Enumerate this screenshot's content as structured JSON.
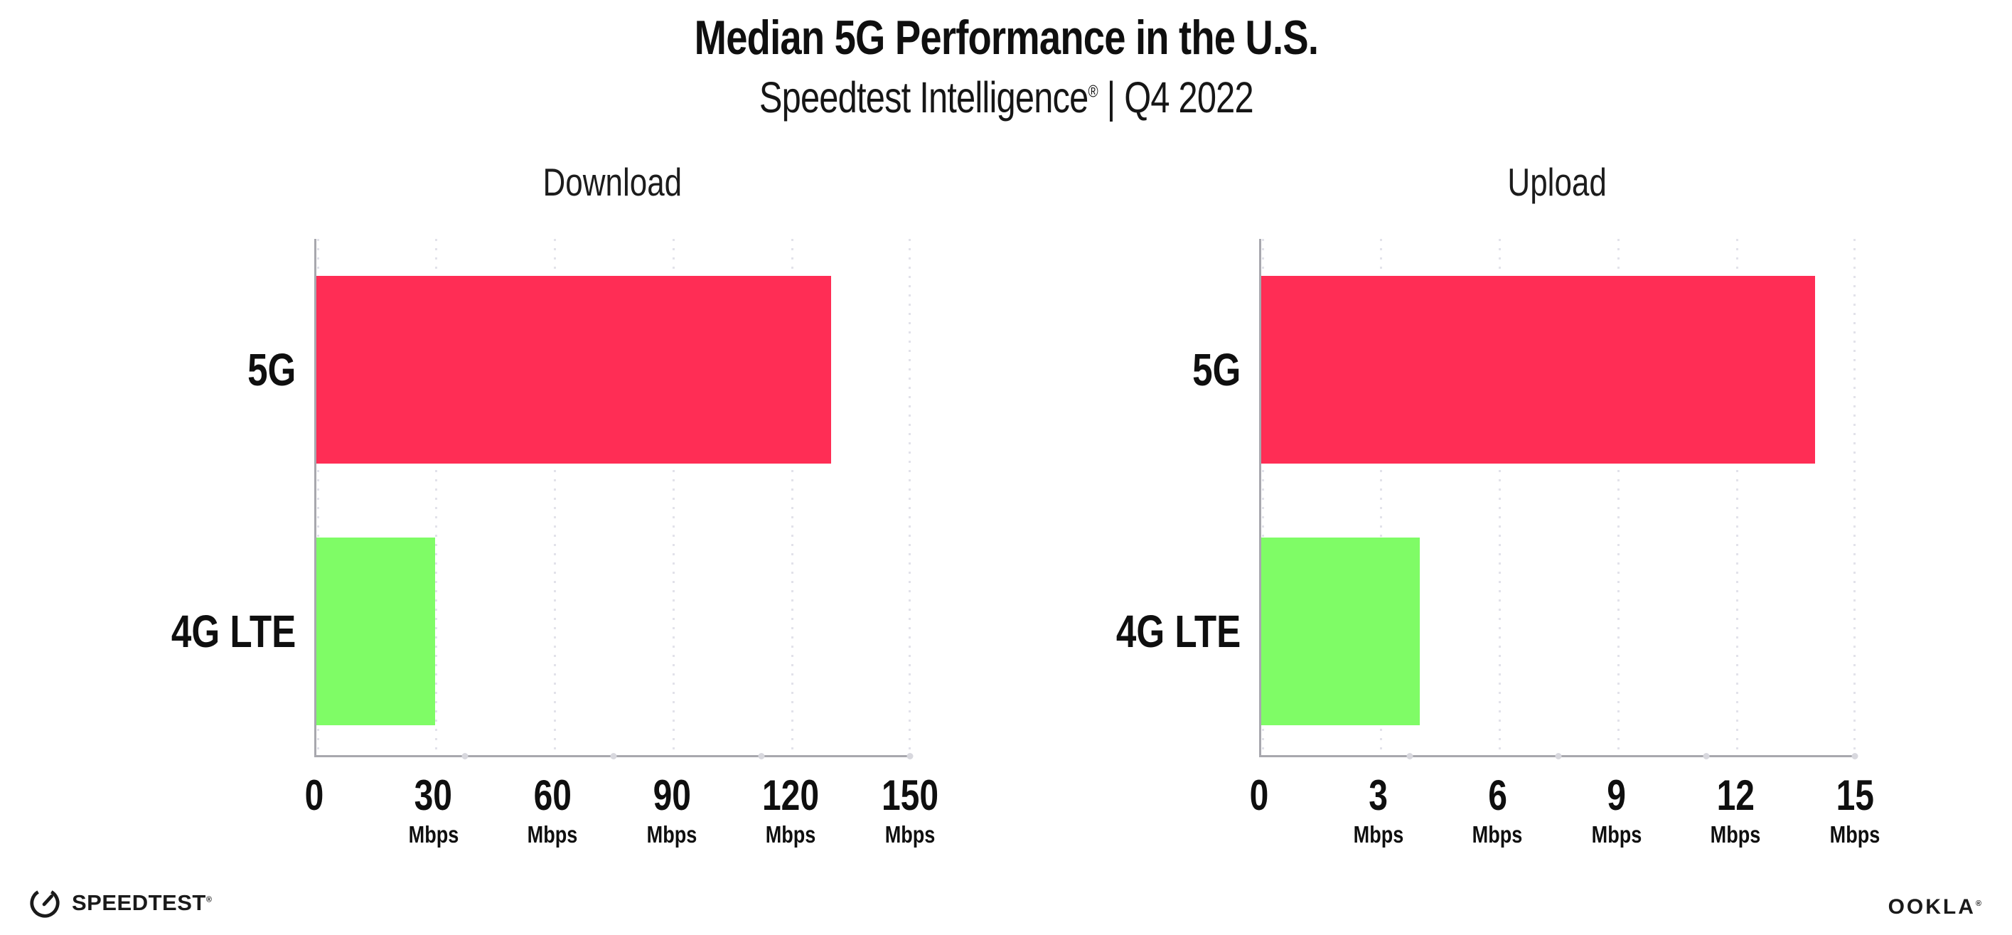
{
  "header": {
    "title": "Median 5G Performance in the U.S.",
    "subtitle_product": "Speedtest Intelligence",
    "subtitle_trademark": "®",
    "subtitle_rest": "| Q4 2022"
  },
  "chart_data": [
    {
      "type": "bar",
      "orientation": "horizontal",
      "title": "Download",
      "categories": [
        "5G",
        "4G LTE"
      ],
      "values": [
        130,
        30
      ],
      "unit": "Mbps",
      "xlim": [
        0,
        150
      ],
      "tick_values": [
        0,
        30,
        60,
        90,
        120,
        150
      ],
      "ticks": [
        {
          "label": "0",
          "unit": ""
        },
        {
          "label": "30",
          "unit": "Mbps"
        },
        {
          "label": "60",
          "unit": "Mbps"
        },
        {
          "label": "90",
          "unit": "Mbps"
        },
        {
          "label": "120",
          "unit": "Mbps"
        },
        {
          "label": "150",
          "unit": "Mbps"
        }
      ],
      "bar_colors": [
        "#ff2d55",
        "#7ffc66"
      ],
      "grid": "dotted-vertical",
      "legend": "none"
    },
    {
      "type": "bar",
      "orientation": "horizontal",
      "title": "Upload",
      "categories": [
        "5G",
        "4G LTE"
      ],
      "values": [
        14,
        4
      ],
      "unit": "Mbps",
      "xlim": [
        0,
        15
      ],
      "tick_values": [
        0,
        3,
        6,
        9,
        12,
        15
      ],
      "ticks": [
        {
          "label": "0",
          "unit": ""
        },
        {
          "label": "3",
          "unit": "Mbps"
        },
        {
          "label": "6",
          "unit": "Mbps"
        },
        {
          "label": "9",
          "unit": "Mbps"
        },
        {
          "label": "12",
          "unit": "Mbps"
        },
        {
          "label": "15",
          "unit": "Mbps"
        }
      ],
      "bar_colors": [
        "#ff2d55",
        "#7ffc66"
      ],
      "grid": "dotted-vertical",
      "legend": "none"
    }
  ],
  "footer": {
    "speedtest_label": "SPEEDTEST",
    "speedtest_trademark": "®",
    "ookla_label": "OOKLA",
    "ookla_trademark": "®"
  },
  "colors": {
    "bar_5g": "#ff2d55",
    "bar_4g_lte": "#7ffc66",
    "axis": "#a8a8ae",
    "gridline": "#e2e2ea",
    "text": "#0f0f0f"
  }
}
